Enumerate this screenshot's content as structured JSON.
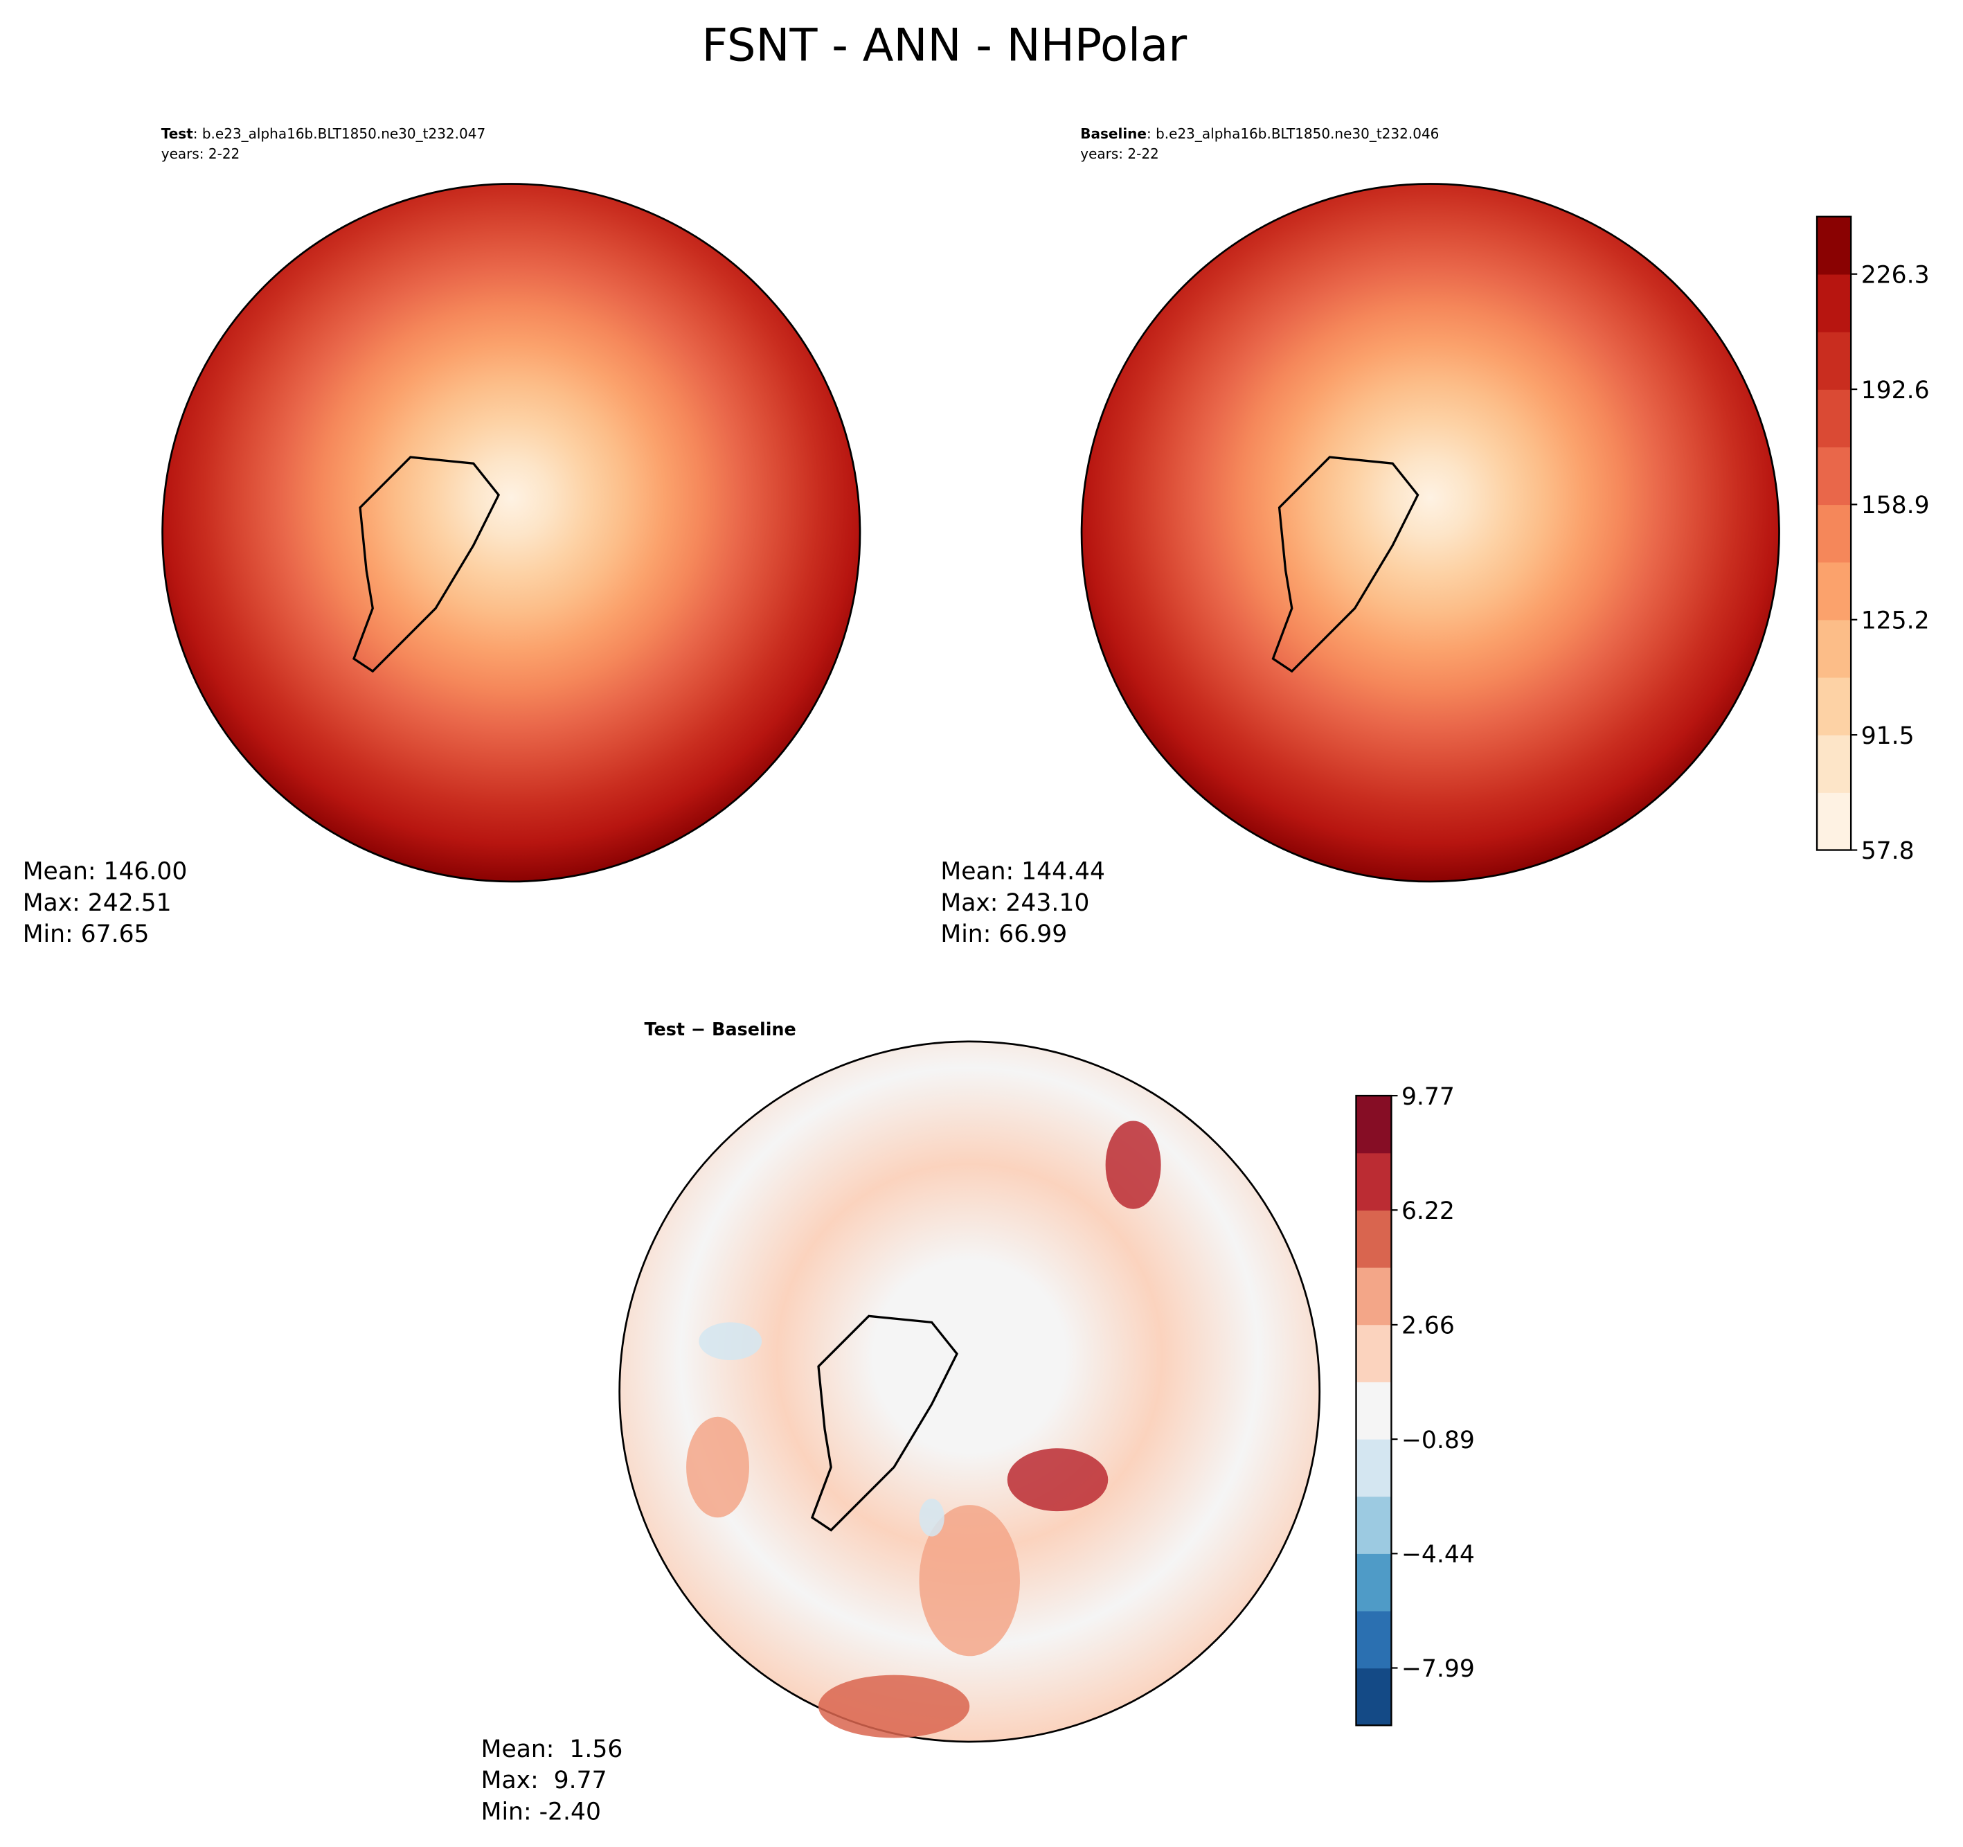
{
  "chart_data": [
    {
      "type": "map",
      "run_label": "Test",
      "case": ": b.e23_alpha16b.BLT1850.ne30_t232.047",
      "years": "years: 2-22",
      "stats": [
        "Mean: 146.00",
        "Max: 242.51",
        "Min: 67.65"
      ]
    },
    {
      "type": "map",
      "run_label": "Baseline",
      "case": ": b.e23_alpha16b.BLT1850.ne30_t232.046",
      "years": "years: 2-22",
      "stats": [
        "Mean: 144.44",
        "Max: 243.10",
        "Min: 66.99"
      ],
      "ylim": [
        57.8,
        243.1
      ],
      "yticks": [
        57.8,
        91.5,
        125.2,
        158.9,
        192.6,
        226.3
      ],
      "colors": [
        "#fef2e3",
        "#fde5c8",
        "#fdd2a5",
        "#fcbd88",
        "#fba26c",
        "#f5875a",
        "#e9674a",
        "#da4a34",
        "#c92d1f",
        "#b71510",
        "#8a0202"
      ]
    },
    {
      "type": "map",
      "title": "Test − Baseline",
      "stats": [
        "Mean:  1.56",
        "Max:  9.77",
        "Min: -2.40"
      ],
      "ylim": [
        -9.77,
        9.77
      ],
      "yticks": [
        {
          "value": -7.99,
          "label": "−7.99"
        },
        {
          "value": -4.44,
          "label": "−4.44"
        },
        {
          "value": -0.89,
          "label": "−0.89"
        },
        2.66,
        6.22,
        9.77
      ],
      "colors": [
        "#144a86",
        "#2b70b1",
        "#4f9bc7",
        "#9ccae1",
        "#d4e6f1",
        "#f5f5f5",
        "#fbd3be",
        "#f3a688",
        "#d9654f",
        "#bb2c33",
        "#860d25"
      ]
    }
  ],
  "title": "FSNT - ANN - NHPolar"
}
